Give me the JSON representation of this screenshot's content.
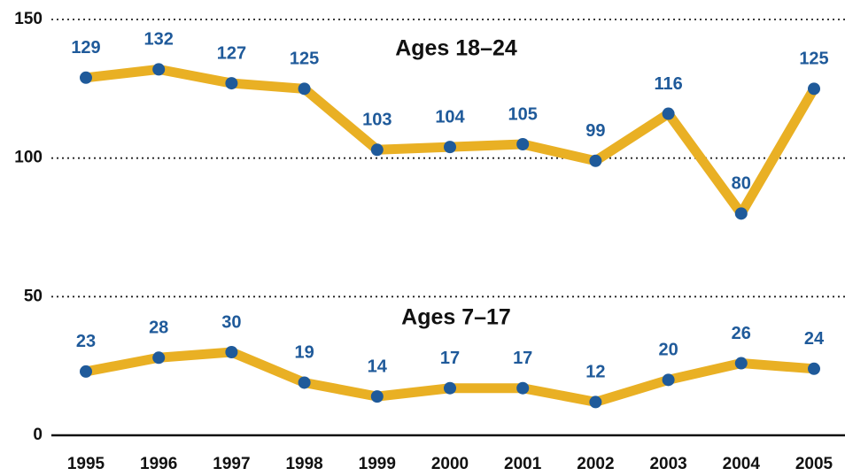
{
  "chart_data": {
    "type": "line",
    "categories": [
      "1995",
      "1996",
      "1997",
      "1998",
      "1999",
      "2000",
      "2001",
      "2002",
      "2003",
      "2004",
      "2005"
    ],
    "series": [
      {
        "name": "Ages 18–24",
        "color": "#e9b024",
        "marker_color": "#1f5a9a",
        "values": [
          129,
          132,
          127,
          125,
          103,
          104,
          105,
          99,
          116,
          80,
          125
        ]
      },
      {
        "name": "Ages 7–17",
        "color": "#e9b024",
        "marker_color": "#1f5a9a",
        "values": [
          23,
          28,
          30,
          19,
          14,
          17,
          17,
          12,
          20,
          26,
          24
        ]
      }
    ],
    "ylim": [
      0,
      150
    ],
    "yticks": [
      0,
      50,
      100,
      150
    ],
    "grid": true
  }
}
